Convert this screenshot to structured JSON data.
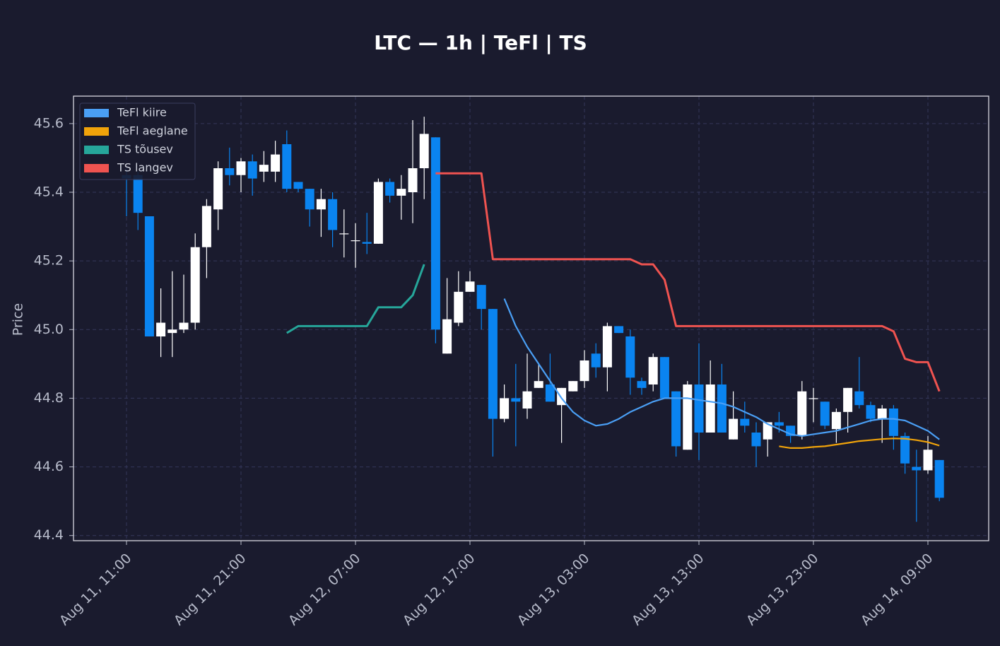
{
  "chart_data": {
    "type": "candlestick",
    "title": "LTC — 1h  |  TeFl  |  TS",
    "y_label": "Price",
    "categories": [
      "Aug 11, 11:00",
      null,
      null,
      null,
      null,
      null,
      null,
      null,
      null,
      null,
      "Aug 11, 21:00",
      null,
      null,
      null,
      null,
      null,
      null,
      null,
      null,
      null,
      "Aug 12, 07:00",
      null,
      null,
      null,
      null,
      null,
      null,
      null,
      null,
      null,
      "Aug 12, 17:00",
      null,
      null,
      null,
      null,
      null,
      null,
      null,
      null,
      null,
      "Aug 13, 03:00",
      null,
      null,
      null,
      null,
      null,
      null,
      null,
      null,
      null,
      "Aug 13, 13:00",
      null,
      null,
      null,
      null,
      null,
      null,
      null,
      null,
      null,
      "Aug 13, 23:00",
      null,
      null,
      null,
      null,
      null,
      null,
      null,
      null,
      null,
      "Aug 14, 09:00",
      null
    ],
    "open": [
      45.45,
      45.45,
      45.33,
      44.98,
      44.99,
      45.0,
      45.02,
      45.24,
      45.35,
      45.47,
      45.45,
      45.49,
      45.46,
      45.46,
      45.54,
      45.43,
      45.41,
      45.35,
      45.38,
      45.28,
      45.26,
      45.255,
      45.25,
      45.43,
      45.39,
      45.4,
      45.47,
      45.56,
      44.93,
      45.02,
      45.11,
      45.13,
      45.06,
      44.74,
      44.8,
      44.77,
      44.83,
      44.84,
      44.78,
      44.82,
      44.85,
      44.93,
      44.89,
      45.01,
      44.98,
      44.85,
      44.84,
      44.92,
      44.82,
      44.65,
      44.84,
      44.7,
      44.84,
      44.68,
      44.74,
      44.7,
      44.68,
      44.73,
      44.72,
      44.69,
      44.8,
      44.79,
      44.71,
      44.76,
      44.82,
      44.78,
      44.74,
      44.77,
      44.69,
      44.6,
      44.59,
      44.62
    ],
    "high": [
      45.47,
      45.46,
      45.33,
      45.12,
      45.17,
      45.16,
      45.28,
      45.38,
      45.49,
      45.53,
      45.5,
      45.51,
      45.52,
      45.55,
      45.58,
      45.43,
      45.41,
      45.41,
      45.4,
      45.35,
      45.31,
      45.34,
      45.44,
      45.44,
      45.45,
      45.61,
      45.62,
      45.56,
      45.15,
      45.17,
      45.17,
      45.13,
      45.06,
      44.84,
      44.9,
      44.93,
      44.9,
      44.93,
      44.83,
      44.85,
      44.94,
      44.96,
      45.02,
      45.01,
      45.0,
      44.86,
      44.93,
      44.92,
      44.82,
      44.85,
      44.96,
      44.91,
      44.9,
      44.82,
      44.79,
      44.73,
      44.73,
      44.76,
      44.72,
      44.85,
      44.83,
      44.79,
      44.77,
      44.83,
      44.92,
      44.79,
      44.78,
      44.78,
      44.7,
      44.65,
      44.69,
      44.62
    ],
    "low": [
      45.33,
      45.29,
      44.98,
      44.92,
      44.92,
      44.99,
      45.0,
      45.15,
      45.29,
      45.42,
      45.4,
      45.39,
      45.43,
      45.43,
      45.4,
      45.4,
      45.3,
      45.27,
      45.24,
      45.21,
      45.18,
      45.22,
      45.25,
      45.37,
      45.32,
      45.31,
      45.38,
      44.96,
      44.93,
      45.01,
      45.11,
      45.0,
      44.63,
      44.73,
      44.66,
      44.74,
      44.83,
      44.79,
      44.67,
      44.82,
      44.83,
      44.86,
      44.82,
      44.99,
      44.81,
      44.81,
      44.82,
      44.8,
      44.63,
      44.65,
      44.62,
      44.7,
      44.7,
      44.68,
      44.7,
      44.6,
      44.63,
      44.7,
      44.67,
      44.68,
      44.73,
      44.71,
      44.67,
      44.7,
      44.77,
      44.73,
      44.67,
      44.65,
      44.58,
      44.44,
      44.58,
      44.5
    ],
    "close": [
      45.44,
      45.34,
      44.98,
      45.02,
      45.0,
      45.02,
      45.24,
      45.36,
      45.47,
      45.45,
      45.49,
      45.44,
      45.48,
      45.51,
      45.41,
      45.41,
      45.35,
      45.38,
      45.29,
      45.28,
      45.26,
      45.25,
      45.43,
      45.39,
      45.41,
      45.47,
      45.57,
      45.0,
      45.03,
      45.11,
      45.14,
      45.06,
      44.74,
      44.8,
      44.79,
      44.82,
      44.85,
      44.79,
      44.83,
      44.85,
      44.91,
      44.89,
      45.01,
      44.99,
      44.86,
      44.83,
      44.92,
      44.8,
      44.66,
      44.84,
      44.7,
      44.84,
      44.7,
      44.74,
      44.72,
      44.66,
      44.73,
      44.72,
      44.69,
      44.82,
      44.8,
      44.72,
      44.76,
      44.83,
      44.78,
      44.74,
      44.77,
      44.69,
      44.61,
      44.59,
      44.65,
      44.51
    ],
    "up_color": "#ffffff",
    "down_color": "#0a84f0",
    "series": [
      {
        "name": "TeFl kiire",
        "color": "#4a9ff5",
        "values": [
          null,
          null,
          null,
          null,
          null,
          null,
          null,
          null,
          null,
          null,
          null,
          null,
          null,
          null,
          null,
          null,
          null,
          null,
          null,
          null,
          null,
          null,
          null,
          null,
          null,
          null,
          null,
          null,
          null,
          null,
          null,
          null,
          null,
          45.09,
          45.01,
          44.95,
          44.9,
          44.85,
          44.8,
          44.76,
          44.735,
          44.72,
          44.725,
          44.74,
          44.76,
          44.775,
          44.79,
          44.8,
          44.8,
          44.8,
          44.795,
          44.79,
          44.785,
          44.775,
          44.76,
          44.745,
          44.725,
          44.71,
          44.695,
          44.69,
          44.695,
          44.7,
          44.705,
          44.715,
          44.725,
          44.735,
          44.74,
          44.74,
          44.735,
          44.72,
          44.705,
          44.68
        ]
      },
      {
        "name": "TeFl aeglane",
        "color": "#f0a30a",
        "values": [
          null,
          null,
          null,
          null,
          null,
          null,
          null,
          null,
          null,
          null,
          null,
          null,
          null,
          null,
          null,
          null,
          null,
          null,
          null,
          null,
          null,
          null,
          null,
          null,
          null,
          null,
          null,
          null,
          null,
          null,
          null,
          null,
          null,
          null,
          null,
          null,
          null,
          null,
          null,
          null,
          null,
          null,
          null,
          null,
          null,
          null,
          null,
          null,
          null,
          null,
          null,
          null,
          null,
          null,
          null,
          null,
          null,
          44.66,
          44.655,
          44.655,
          44.658,
          44.66,
          44.665,
          44.67,
          44.675,
          44.678,
          44.681,
          44.683,
          44.682,
          44.678,
          44.672,
          44.662
        ]
      },
      {
        "name": "TS tõusev",
        "color": "#26a69a",
        "values": [
          null,
          null,
          null,
          null,
          null,
          null,
          null,
          null,
          null,
          null,
          null,
          null,
          null,
          null,
          44.99,
          45.01,
          45.01,
          45.01,
          45.01,
          45.01,
          45.01,
          45.01,
          45.065,
          45.065,
          45.065,
          45.1,
          45.19,
          null,
          null,
          null,
          null,
          null,
          null,
          null,
          null,
          null,
          null,
          null,
          null,
          null,
          null,
          null,
          null,
          null,
          null,
          null,
          null,
          null,
          null,
          null,
          null,
          null,
          null,
          null,
          null,
          null,
          null,
          null,
          null,
          null,
          null,
          null,
          null,
          null,
          null,
          null,
          null,
          null,
          null,
          null,
          null,
          null
        ]
      },
      {
        "name": "TS langev",
        "color": "#ef5350",
        "values": [
          null,
          null,
          null,
          null,
          null,
          null,
          null,
          null,
          null,
          null,
          null,
          null,
          null,
          null,
          null,
          null,
          null,
          null,
          null,
          null,
          null,
          null,
          null,
          null,
          null,
          null,
          null,
          45.455,
          45.455,
          45.455,
          45.455,
          45.455,
          45.205,
          45.205,
          45.205,
          45.205,
          45.205,
          45.205,
          45.205,
          45.205,
          45.205,
          45.205,
          45.205,
          45.205,
          45.205,
          45.19,
          45.19,
          45.145,
          45.01,
          45.01,
          45.01,
          45.01,
          45.01,
          45.01,
          45.01,
          45.01,
          45.01,
          45.01,
          45.01,
          45.01,
          45.01,
          45.01,
          45.01,
          45.01,
          45.01,
          45.01,
          45.01,
          44.995,
          44.915,
          44.905,
          44.905,
          44.82
        ]
      }
    ],
    "ylim": [
      44.385,
      45.68
    ],
    "yticks": [
      44.4,
      44.6,
      44.8,
      {
        "value": 45,
        "label": "45.0"
      },
      45.2,
      45.4,
      45.6
    ],
    "grid": true,
    "legend": "upper left"
  }
}
